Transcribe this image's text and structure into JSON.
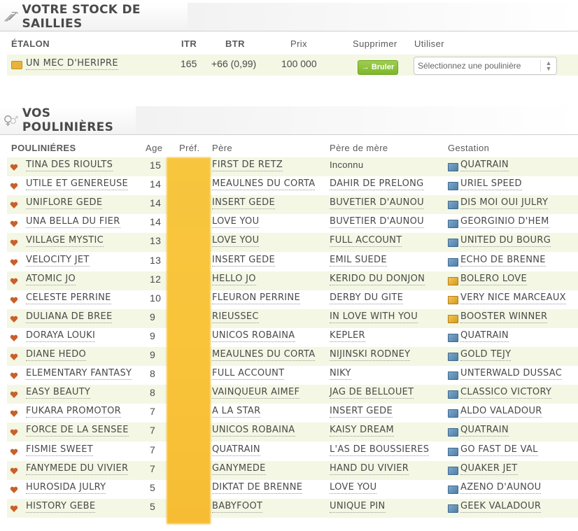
{
  "stock": {
    "title": "VOTRE STOCK DE SAILLIES",
    "icon": "tools-icon",
    "columns": {
      "etalon": "ÉTALON",
      "itr": "ITR",
      "btr": "BTR",
      "prix": "Prix",
      "supprimer": "Supprimer",
      "utiliser": "Utiliser"
    },
    "rows": [
      {
        "etalon": "UN MEC D'HERIPRE",
        "itr": "165",
        "btr": "+66 (0,99)",
        "prix": "100 000",
        "bruler_label": "→ Bruler",
        "select_placeholder": "Sélectionnez une poulinière",
        "icon_color": "#e8b33c"
      }
    ]
  },
  "mares": {
    "title": "VOS POULINIÈRES",
    "icon": "mare-stallion-icon",
    "columns": {
      "pouliniere": "POULINIÉRES",
      "age": "Age",
      "pref": "Préf.",
      "pere": "Père",
      "pere_mere": "Père de mère",
      "gestation": "Gestation"
    },
    "rows": [
      {
        "name": "TINA DES RIOULTS",
        "age": "15",
        "pere": "FIRST DE RETZ",
        "pere_mere": "Inconnu",
        "gestation": "QUATRAIN",
        "gest_color": "blue"
      },
      {
        "name": "UTILE ET GENEREUSE",
        "age": "14",
        "pere": "MEAULNES DU CORTA",
        "pere_mere": "DAHIR DE PRELONG",
        "gestation": "URIEL SPEED",
        "gest_color": "blue"
      },
      {
        "name": "UNIFLORE GEDE",
        "age": "14",
        "pere": "INSERT GEDE",
        "pere_mere": "BUVETIER D'AUNOU",
        "gestation": "DIS MOI OUI JULRY",
        "gest_color": "blue"
      },
      {
        "name": "UNA BELLA DU FIER",
        "age": "14",
        "pere": "LOVE YOU",
        "pere_mere": "BUVETIER D'AUNOU",
        "gestation": "GEORGINIO D'HEM",
        "gest_color": "blue"
      },
      {
        "name": "VILLAGE MYSTIC",
        "age": "13",
        "pere": "LOVE YOU",
        "pere_mere": "FULL ACCOUNT",
        "gestation": "UNITED DU BOURG",
        "gest_color": "blue"
      },
      {
        "name": "VELOCITY JET",
        "age": "13",
        "pere": "INSERT GEDE",
        "pere_mere": "EMIL SUEDE",
        "gestation": "ECHO DE BRENNE",
        "gest_color": "blue"
      },
      {
        "name": "ATOMIC JO",
        "age": "12",
        "pere": "HELLO JO",
        "pere_mere": "KERIDO DU DONJON",
        "gestation": "BOLERO LOVE",
        "gest_color": "gold"
      },
      {
        "name": "CELESTE PERRINE",
        "age": "10",
        "pere": "FLEURON PERRINE",
        "pere_mere": "DERBY DU GITE",
        "gestation": "VERY NICE MARCEAUX",
        "gest_color": "gold"
      },
      {
        "name": "DULIANA DE BREE",
        "age": "9",
        "pere": "RIEUSSEC",
        "pere_mere": "IN LOVE WITH YOU",
        "gestation": "BOOSTER WINNER",
        "gest_color": "gold"
      },
      {
        "name": "DORAYA LOUKI",
        "age": "9",
        "pere": "UNICOS ROBAINA",
        "pere_mere": "KEPLER",
        "gestation": "QUATRAIN",
        "gest_color": "blue"
      },
      {
        "name": "DIANE HEDO",
        "age": "9",
        "pere": "MEAULNES DU CORTA",
        "pere_mere": "NIJINSKI RODNEY",
        "gestation": "GOLD TEJY",
        "gest_color": "blue"
      },
      {
        "name": "ELEMENTARY FANTASY",
        "age": "8",
        "pere": "FULL ACCOUNT",
        "pere_mere": "NIKY",
        "gestation": "UNTERWALD DUSSAC",
        "gest_color": "blue"
      },
      {
        "name": "EASY BEAUTY",
        "age": "8",
        "pere": "VAINQUEUR AIMEF",
        "pere_mere": "JAG DE BELLOUET",
        "gestation": "CLASSICO VICTORY",
        "gest_color": "blue"
      },
      {
        "name": "FUKARA PROMOTOR",
        "age": "7",
        "pere": "A LA STAR",
        "pere_mere": "INSERT GEDE",
        "gestation": "ALDO VALADOUR",
        "gest_color": "blue"
      },
      {
        "name": "FORCE DE LA SENSEE",
        "age": "7",
        "pere": "UNICOS ROBAINA",
        "pere_mere": "KAISY DREAM",
        "gestation": "QUATRAIN",
        "gest_color": "blue"
      },
      {
        "name": "FISMIE SWEET",
        "age": "7",
        "pere": "QUATRAIN",
        "pere_mere": "L'AS DE BOUSSIERES",
        "gestation": "GO FAST DE VAL",
        "gest_color": "blue"
      },
      {
        "name": "FANYMEDE DU VIVIER",
        "age": "7",
        "pere": "GANYMEDE",
        "pere_mere": "HAND DU VIVIER",
        "gestation": "QUAKER JET",
        "gest_color": "blue"
      },
      {
        "name": "HUROSIDA JULRY",
        "age": "5",
        "pere": "DIKTAT DE BRENNE",
        "pere_mere": "LOVE YOU",
        "gestation": "AZENO D'AUNOU",
        "gest_color": "blue"
      },
      {
        "name": "HISTORY GEBE",
        "age": "5",
        "pere": "BABYFOOT",
        "pere_mere": "UNIQUE PIN",
        "gestation": "GEEK VALADOUR",
        "gest_color": "blue"
      }
    ]
  }
}
